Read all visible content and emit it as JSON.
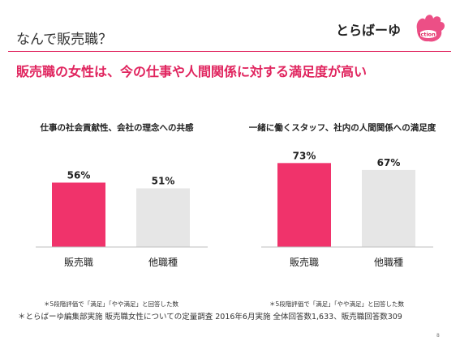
{
  "header": {
    "title": "なんで販売職？",
    "brand": "とらばーゆ",
    "logo_text": "iction!"
  },
  "headline": "販売職の女性は、今の仕事や人間関係に対する満足度が高い",
  "colors": {
    "accent": "#e0245e",
    "bar_primary": "#f0336b",
    "bar_secondary": "#e6e6e6"
  },
  "chart_data": [
    {
      "type": "bar",
      "title": "仕事の社会貢献性、会社の理念への共感",
      "categories": [
        "販売職",
        "他職種"
      ],
      "values": [
        56,
        51
      ],
      "value_labels": [
        "56%",
        "51%"
      ],
      "note": "＊5段階評価で「満足」「やや満足」と回答した数",
      "ylim": [
        0,
        100
      ]
    },
    {
      "type": "bar",
      "title": "一緒に働くスタッフ、社内の人間関係への満足度",
      "categories": [
        "販売職",
        "他職種"
      ],
      "values": [
        73,
        67
      ],
      "value_labels": [
        "73%",
        "67%"
      ],
      "note": "＊5段階評価で「満足」「やや満足」と回答した数",
      "ylim": [
        0,
        100
      ]
    }
  ],
  "footnote": "＊とらばーゆ編集部実施 販売職女性についての定量調査 2016年6月実施 全体回答数1,633、販売職回答数309",
  "page_number": "8"
}
